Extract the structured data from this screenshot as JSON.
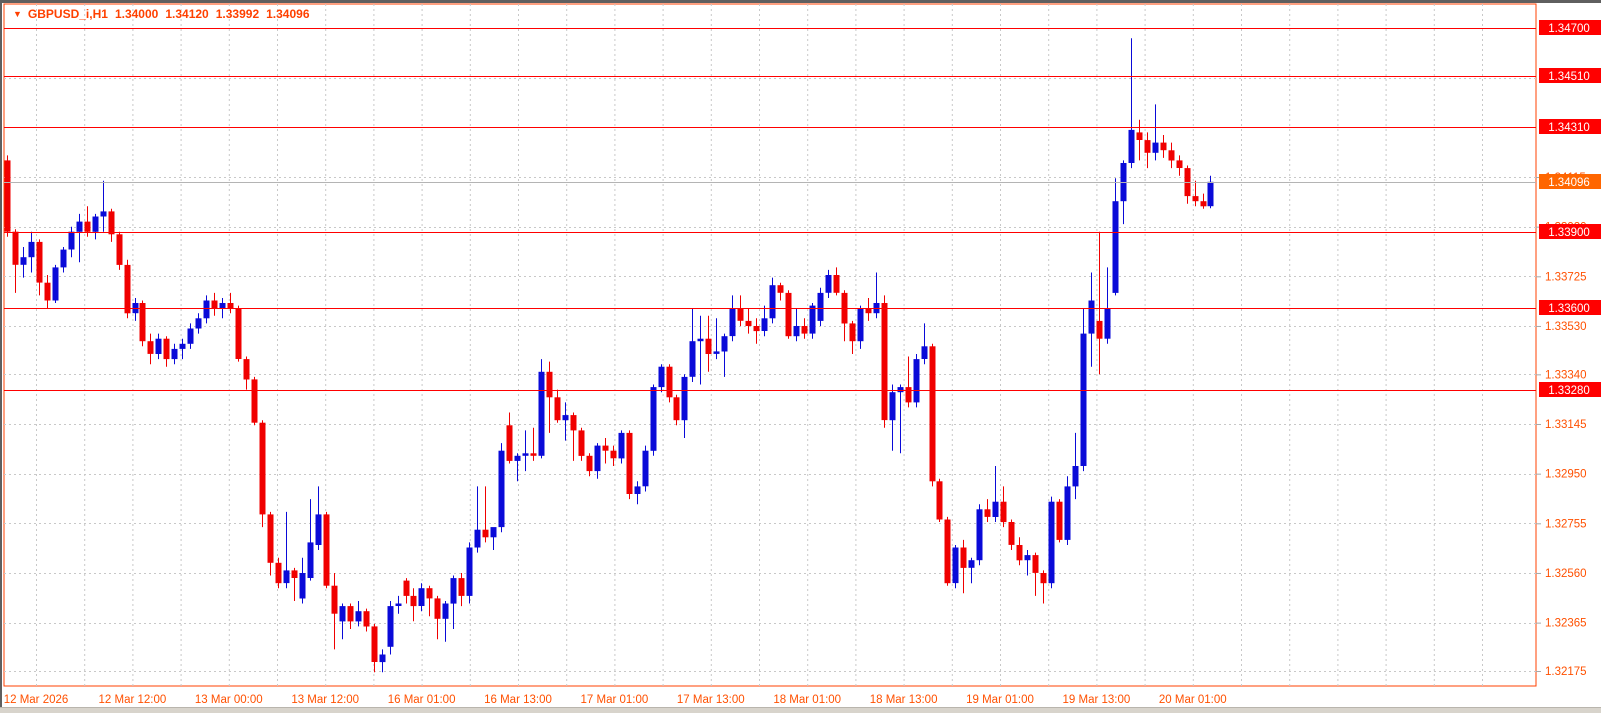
{
  "header": {
    "symbol": "GBPUSD_i,H1",
    "open": "1.34000",
    "high": "1.34120",
    "low": "1.33992",
    "close": "1.34096",
    "collapse_icon": "down-triangle"
  },
  "colors": {
    "background": "#ffffff",
    "frame": "#ff4000",
    "grid": "#c8c8c8",
    "axis_text": "#ff5000",
    "title_text": "#ff4000",
    "level_line": "#ff0000",
    "level_badge": "#ff0000",
    "current_badge": "#ff6600",
    "current_line": "#b4b4b4",
    "badge_text": "#ffffff",
    "bull": "#0a0ad8",
    "bear": "#f00000",
    "window_border": "#5f5f5f",
    "taskbar_strip": "#d8d4cc"
  },
  "chart_data": {
    "type": "candlestick",
    "symbol": "GBPUSD_i",
    "timeframe": "H1",
    "title": "GBPUSD_i,H1 1.34000 1.34120 1.33992 1.34096",
    "grid": true,
    "legend_position": "none",
    "x_labels": [
      "12 Mar 2026",
      "12 Mar 12:00",
      "13 Mar 00:00",
      "13 Mar 12:00",
      "16 Mar 01:00",
      "16 Mar 13:00",
      "17 Mar 01:00",
      "17 Mar 13:00",
      "18 Mar 01:00",
      "18 Mar 13:00",
      "19 Mar 01:00",
      "19 Mar 13:00",
      "20 Mar 01:00"
    ],
    "y_ticks": [
      "1.34115",
      "1.33920",
      "1.33725",
      "1.33530",
      "1.33340",
      "1.33145",
      "1.32950",
      "1.32755",
      "1.32560",
      "1.32365",
      "1.32175"
    ],
    "grid_extra_y": [
      "1.34700",
      "1.34505",
      "1.34310"
    ],
    "y_range": [
      1.3211,
      1.3479
    ],
    "levels": [
      {
        "price": 1.347,
        "label": "1.34700"
      },
      {
        "price": 1.3451,
        "label": "1.34510"
      },
      {
        "price": 1.3431,
        "label": "1.34310"
      },
      {
        "price": 1.339,
        "label": "1.33900"
      },
      {
        "price": 1.336,
        "label": "1.33600"
      },
      {
        "price": 1.3328,
        "label": "1.33280"
      }
    ],
    "current_price": {
      "value": 1.34096,
      "label": "1.34096"
    },
    "candles": [
      [
        1.3418,
        1.342,
        1.3388,
        1.339
      ],
      [
        1.339,
        1.3391,
        1.3366,
        1.3377
      ],
      [
        1.3377,
        1.3384,
        1.3372,
        1.338
      ],
      [
        1.338,
        1.339,
        1.3374,
        1.3386
      ],
      [
        1.3386,
        1.3387,
        1.3365,
        1.337
      ],
      [
        1.337,
        1.3373,
        1.336,
        1.3363
      ],
      [
        1.3363,
        1.3377,
        1.3362,
        1.3376
      ],
      [
        1.3376,
        1.3384,
        1.3374,
        1.3383
      ],
      [
        1.3383,
        1.3392,
        1.338,
        1.339
      ],
      [
        1.339,
        1.3397,
        1.3378,
        1.3394
      ],
      [
        1.3394,
        1.34,
        1.3388,
        1.339
      ],
      [
        1.339,
        1.3397,
        1.3387,
        1.3396
      ],
      [
        1.3396,
        1.341,
        1.339,
        1.3398
      ],
      [
        1.3398,
        1.3399,
        1.3386,
        1.3389
      ],
      [
        1.3389,
        1.339,
        1.3375,
        1.3377
      ],
      [
        1.3377,
        1.3379,
        1.3356,
        1.3358
      ],
      [
        1.3358,
        1.3364,
        1.3355,
        1.3362
      ],
      [
        1.3362,
        1.3363,
        1.3345,
        1.3347
      ],
      [
        1.3347,
        1.335,
        1.3338,
        1.3342
      ],
      [
        1.3342,
        1.335,
        1.334,
        1.3348
      ],
      [
        1.3348,
        1.3349,
        1.3337,
        1.334
      ],
      [
        1.334,
        1.3346,
        1.3338,
        1.3344
      ],
      [
        1.3344,
        1.3348,
        1.334,
        1.3346
      ],
      [
        1.3346,
        1.3354,
        1.3344,
        1.3352
      ],
      [
        1.3352,
        1.3358,
        1.335,
        1.3356
      ],
      [
        1.3356,
        1.3365,
        1.3354,
        1.3363
      ],
      [
        1.3363,
        1.3366,
        1.3357,
        1.336
      ],
      [
        1.336,
        1.3364,
        1.3356,
        1.3362
      ],
      [
        1.3362,
        1.3366,
        1.3358,
        1.336
      ],
      [
        1.336,
        1.3361,
        1.3339,
        1.334
      ],
      [
        1.334,
        1.3341,
        1.3328,
        1.3332
      ],
      [
        1.3332,
        1.3333,
        1.3314,
        1.3315
      ],
      [
        1.3315,
        1.3316,
        1.3274,
        1.3279
      ],
      [
        1.3279,
        1.328,
        1.3255,
        1.326
      ],
      [
        1.326,
        1.3262,
        1.325,
        1.3252
      ],
      [
        1.3252,
        1.328,
        1.325,
        1.3257
      ],
      [
        1.3257,
        1.3258,
        1.3245,
        1.3254
      ],
      [
        1.3246,
        1.3262,
        1.3244,
        1.3256
      ],
      [
        1.3254,
        1.3285,
        1.3253,
        1.3268
      ],
      [
        1.3267,
        1.329,
        1.3265,
        1.3279
      ],
      [
        1.3279,
        1.328,
        1.325,
        1.3251
      ],
      [
        1.3251,
        1.3256,
        1.3226,
        1.324
      ],
      [
        1.3237,
        1.3244,
        1.323,
        1.3243
      ],
      [
        1.3243,
        1.3244,
        1.3234,
        1.3237
      ],
      [
        1.3237,
        1.3245,
        1.3235,
        1.3241
      ],
      [
        1.3241,
        1.3242,
        1.3233,
        1.3235
      ],
      [
        1.3235,
        1.3236,
        1.3217,
        1.3221
      ],
      [
        1.3221,
        1.3226,
        1.3217,
        1.3224
      ],
      [
        1.3227,
        1.3245,
        1.3224,
        1.3243
      ],
      [
        1.3243,
        1.3247,
        1.324,
        1.3244
      ],
      [
        1.3253,
        1.3254,
        1.3244,
        1.3247
      ],
      [
        1.3247,
        1.325,
        1.3237,
        1.3243
      ],
      [
        1.3243,
        1.3252,
        1.3241,
        1.325
      ],
      [
        1.325,
        1.3251,
        1.3239,
        1.3246
      ],
      [
        1.3246,
        1.3247,
        1.323,
        1.3238
      ],
      [
        1.3238,
        1.3245,
        1.3229,
        1.3244
      ],
      [
        1.3244,
        1.3255,
        1.3234,
        1.3254
      ],
      [
        1.3254,
        1.3256,
        1.3243,
        1.3247
      ],
      [
        1.3247,
        1.3268,
        1.3244,
        1.3266
      ],
      [
        1.3266,
        1.329,
        1.3264,
        1.3273
      ],
      [
        1.3273,
        1.329,
        1.3268,
        1.327
      ],
      [
        1.327,
        1.3272,
        1.3265,
        1.3274
      ],
      [
        1.3274,
        1.3307,
        1.3272,
        1.3304
      ],
      [
        1.3314,
        1.3319,
        1.3299,
        1.33
      ],
      [
        1.33,
        1.3303,
        1.3292,
        1.3302
      ],
      [
        1.3302,
        1.3312,
        1.3296,
        1.3303
      ],
      [
        1.3303,
        1.3313,
        1.33,
        1.3302
      ],
      [
        1.3302,
        1.334,
        1.3301,
        1.3335
      ],
      [
        1.3335,
        1.3339,
        1.3311,
        1.3325
      ],
      [
        1.3325,
        1.3328,
        1.3315,
        1.3316
      ],
      [
        1.3316,
        1.3323,
        1.3308,
        1.3318
      ],
      [
        1.3318,
        1.3319,
        1.33,
        1.3312
      ],
      [
        1.3312,
        1.3313,
        1.33,
        1.3302
      ],
      [
        1.3302,
        1.3303,
        1.3294,
        1.3296
      ],
      [
        1.3296,
        1.3307,
        1.3293,
        1.3306
      ],
      [
        1.3306,
        1.3309,
        1.3299,
        1.3304
      ],
      [
        1.3304,
        1.3306,
        1.3298,
        1.3301
      ],
      [
        1.3301,
        1.3312,
        1.3299,
        1.3311
      ],
      [
        1.3311,
        1.3312,
        1.3285,
        1.3287
      ],
      [
        1.3287,
        1.3292,
        1.3283,
        1.329
      ],
      [
        1.329,
        1.3306,
        1.3288,
        1.3304
      ],
      [
        1.3304,
        1.333,
        1.3302,
        1.3329
      ],
      [
        1.3329,
        1.3338,
        1.3327,
        1.3337
      ],
      [
        1.3337,
        1.3338,
        1.3323,
        1.3325
      ],
      [
        1.3325,
        1.3326,
        1.3314,
        1.3316
      ],
      [
        1.3316,
        1.3334,
        1.3309,
        1.3333
      ],
      [
        1.3333,
        1.336,
        1.3331,
        1.3347
      ],
      [
        1.3347,
        1.3357,
        1.333,
        1.3348
      ],
      [
        1.3348,
        1.3357,
        1.3335,
        1.3342
      ],
      [
        1.3342,
        1.3356,
        1.334,
        1.3343
      ],
      [
        1.3343,
        1.335,
        1.3333,
        1.3349
      ],
      [
        1.3349,
        1.3365,
        1.3347,
        1.336
      ],
      [
        1.336,
        1.3365,
        1.3353,
        1.3355
      ],
      [
        1.3355,
        1.336,
        1.335,
        1.3353
      ],
      [
        1.3353,
        1.3356,
        1.3346,
        1.3351
      ],
      [
        1.3351,
        1.3361,
        1.3349,
        1.3356
      ],
      [
        1.3356,
        1.3372,
        1.3354,
        1.3369
      ],
      [
        1.3369,
        1.337,
        1.3363,
        1.3366
      ],
      [
        1.3366,
        1.3367,
        1.3348,
        1.3349
      ],
      [
        1.3349,
        1.336,
        1.3347,
        1.3353
      ],
      [
        1.3353,
        1.3356,
        1.3348,
        1.335
      ],
      [
        1.335,
        1.3362,
        1.3348,
        1.3361
      ],
      [
        1.3355,
        1.3368,
        1.3353,
        1.3366
      ],
      [
        1.3366,
        1.3375,
        1.3364,
        1.3373
      ],
      [
        1.3373,
        1.3376,
        1.3365,
        1.3366
      ],
      [
        1.3366,
        1.3367,
        1.3347,
        1.3354
      ],
      [
        1.3354,
        1.3355,
        1.3342,
        1.3347
      ],
      [
        1.3347,
        1.3361,
        1.3344,
        1.336
      ],
      [
        1.336,
        1.3364,
        1.3355,
        1.3358
      ],
      [
        1.3358,
        1.3374,
        1.3356,
        1.3362
      ],
      [
        1.3362,
        1.3365,
        1.3313,
        1.3316
      ],
      [
        1.3316,
        1.333,
        1.3304,
        1.3327
      ],
      [
        1.3327,
        1.333,
        1.3303,
        1.3329
      ],
      [
        1.3329,
        1.3341,
        1.3321,
        1.3323
      ],
      [
        1.3323,
        1.3342,
        1.3321,
        1.334
      ],
      [
        1.334,
        1.3354,
        1.3338,
        1.3345
      ],
      [
        1.3345,
        1.3346,
        1.329,
        1.3292
      ],
      [
        1.3292,
        1.3293,
        1.3276,
        1.3277
      ],
      [
        1.3277,
        1.3278,
        1.3251,
        1.3252
      ],
      [
        1.3252,
        1.3267,
        1.325,
        1.3266
      ],
      [
        1.3266,
        1.3269,
        1.3248,
        1.3258
      ],
      [
        1.3258,
        1.3262,
        1.3252,
        1.3261
      ],
      [
        1.3261,
        1.3283,
        1.3259,
        1.3281
      ],
      [
        1.3281,
        1.3285,
        1.3276,
        1.3278
      ],
      [
        1.3278,
        1.3298,
        1.3276,
        1.3284
      ],
      [
        1.3284,
        1.329,
        1.3274,
        1.3276
      ],
      [
        1.3276,
        1.3277,
        1.3265,
        1.3267
      ],
      [
        1.3267,
        1.327,
        1.3259,
        1.3261
      ],
      [
        1.3261,
        1.3265,
        1.3255,
        1.3263
      ],
      [
        1.3263,
        1.3264,
        1.3247,
        1.3256
      ],
      [
        1.3256,
        1.3257,
        1.3244,
        1.3252
      ],
      [
        1.3252,
        1.3286,
        1.325,
        1.3284
      ],
      [
        1.3284,
        1.3285,
        1.3268,
        1.3269
      ],
      [
        1.3269,
        1.3294,
        1.3267,
        1.329
      ],
      [
        1.329,
        1.3311,
        1.3285,
        1.3298
      ],
      [
        1.3298,
        1.336,
        1.3296,
        1.335
      ],
      [
        1.335,
        1.3374,
        1.3337,
        1.3363
      ],
      [
        1.3355,
        1.339,
        1.3334,
        1.3348
      ],
      [
        1.3348,
        1.3376,
        1.3346,
        1.336
      ],
      [
        1.3366,
        1.3411,
        1.3365,
        1.3402
      ],
      [
        1.3402,
        1.3418,
        1.3393,
        1.3417
      ],
      [
        1.3417,
        1.3466,
        1.3415,
        1.343
      ],
      [
        1.3429,
        1.3434,
        1.3418,
        1.3426
      ],
      [
        1.3426,
        1.3429,
        1.3415,
        1.3421
      ],
      [
        1.3421,
        1.344,
        1.3418,
        1.3425
      ],
      [
        1.3425,
        1.3428,
        1.3419,
        1.3422
      ],
      [
        1.3422,
        1.3425,
        1.3415,
        1.3418
      ],
      [
        1.3418,
        1.342,
        1.3412,
        1.3415
      ],
      [
        1.3415,
        1.3416,
        1.3401,
        1.3404
      ],
      [
        1.3404,
        1.341,
        1.34,
        1.3402
      ],
      [
        1.3402,
        1.3405,
        1.3399,
        1.34
      ],
      [
        1.34,
        1.3412,
        1.33992,
        1.34096
      ]
    ]
  }
}
